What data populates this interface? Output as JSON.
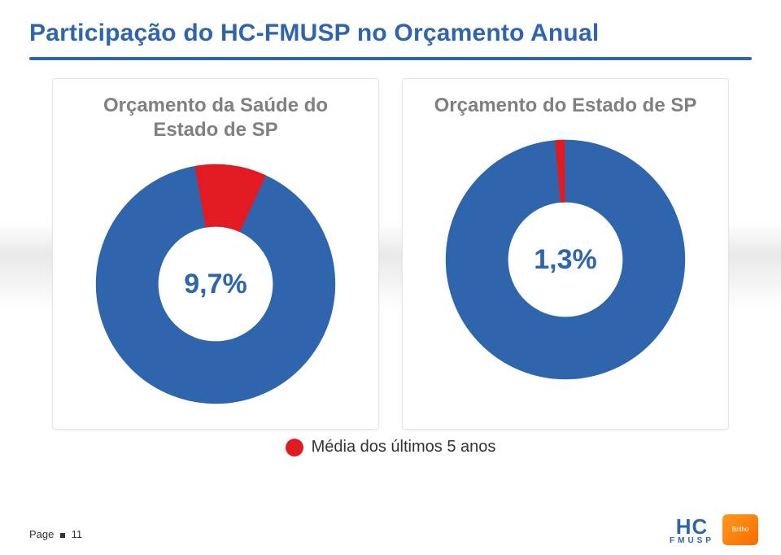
{
  "title": {
    "text": "Participação do HC-FMUSP no Orçamento Anual",
    "color": "#2f65ad",
    "fontsize": 30
  },
  "rule_color": "#2f65ad",
  "charts": [
    {
      "heading": "Orçamento da Saúde do Estado de SP",
      "type": "donut",
      "value_pct": 9.7,
      "center_label": "9,7%",
      "center_label_color": "#2f65ad",
      "center_label_fontsize": 34,
      "slice_color": "#e21b22",
      "ring_color": "#2f65ad",
      "background_color": "#ffffff",
      "ring_thickness_ratio": 0.32,
      "slice_start_deg_clockwise_from_top": 350,
      "heading_color": "#808080",
      "heading_fontsize": 24
    },
    {
      "heading": "Orçamento do Estado de SP",
      "type": "donut",
      "value_pct": 1.3,
      "center_label": "1,3%",
      "center_label_color": "#2f65ad",
      "center_label_fontsize": 34,
      "slice_color": "#e21b22",
      "ring_color": "#2f65ad",
      "background_color": "#ffffff",
      "ring_thickness_ratio": 0.32,
      "slice_start_deg_clockwise_from_top": 355,
      "heading_color": "#808080",
      "heading_fontsize": 24
    }
  ],
  "legend": {
    "swatch_color": "#e21b22",
    "text": "Média dos últimos 5 anos",
    "text_color": "#333333",
    "fontsize": 20
  },
  "footer": {
    "page_label": "Page",
    "page_number": "11"
  },
  "logos": {
    "hc_text": "HC",
    "hc_sub": "FMUSP",
    "hc_color": "#2f65ad",
    "brilho_text": "Brilho"
  }
}
